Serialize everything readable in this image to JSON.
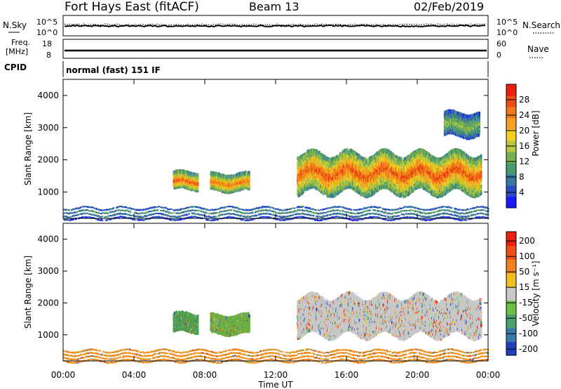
{
  "header": {
    "station": "Fort Hays East (fitACF)",
    "beam": "Beam 13",
    "date": "02/Feb/2019"
  },
  "noise_panel": {
    "left_label": "N.Sky",
    "right_label": "N.Search",
    "left_ticks": [
      "10^5",
      "10^0"
    ],
    "right_ticks": [
      "10^5",
      "10^0"
    ]
  },
  "freq_panel": {
    "left_label_line1": "Freq.",
    "left_label_line2": "[MHz]",
    "right_label": "Nave",
    "left_ticks": [
      "18",
      "8"
    ],
    "right_ticks": [
      "60",
      "0"
    ]
  },
  "cpid": {
    "label": "CPID",
    "value": "normal (fast) 151 IF"
  },
  "chart_data": [
    {
      "type": "heatmap",
      "title": "",
      "ylabel": "Slant Range [km]",
      "xlabel": "",
      "ylim": [
        180,
        4500
      ],
      "yticks": [
        "1000",
        "2000",
        "3000",
        "4000"
      ],
      "xlim": [
        0,
        24
      ],
      "colorbar": {
        "label": "Power [dB]",
        "ticks": [
          "4",
          "8",
          "12",
          "16",
          "20",
          "24",
          "28"
        ],
        "colors": [
          "#1a1aff",
          "#2a4cc8",
          "#3a78a0",
          "#4a9a70",
          "#76b052",
          "#b8c840",
          "#f0d020",
          "#f5a020",
          "#f07818",
          "#ee4a14",
          "#e82010"
        ]
      },
      "regions": [
        {
          "t0": 6.2,
          "t1": 7.6,
          "r0": 1150,
          "r1": 1650,
          "level": 0.85
        },
        {
          "t0": 8.3,
          "t1": 10.5,
          "r0": 1100,
          "r1": 1600,
          "level": 0.8
        },
        {
          "t0": 13.2,
          "t1": 23.6,
          "r0": 1050,
          "r1": 2250,
          "level": 0.85
        },
        {
          "t0": 21.5,
          "t1": 23.5,
          "r0": 2800,
          "r1": 3500,
          "level": 0.45
        },
        {
          "t0": 0,
          "t1": 24,
          "r0": 180,
          "r1": 600,
          "level": 0.3
        }
      ]
    },
    {
      "type": "heatmap",
      "title": "",
      "ylabel": "Slant Range [km]",
      "xlabel": "Time UT",
      "ylim": [
        180,
        4500
      ],
      "yticks": [
        "1000",
        "2000",
        "3000",
        "4000"
      ],
      "xlim": [
        0,
        24
      ],
      "xticks": [
        "00:00",
        "04:00",
        "08:00",
        "12:00",
        "16:00",
        "20:00",
        "00:00"
      ],
      "colorbar": {
        "label": "Velocity [m s⁻¹]",
        "ticks": [
          "200",
          "100",
          "50",
          "15",
          "-15",
          "-50",
          "-100",
          "-200"
        ],
        "colors": [
          "#2040c0",
          "#3a7aa8",
          "#4aa070",
          "#6cc040",
          "#c8c8c8",
          "#f0c020",
          "#f08020",
          "#f05018",
          "#e82010"
        ]
      },
      "regions": [
        {
          "t0": 6.2,
          "t1": 7.6,
          "r0": 1150,
          "r1": 1700,
          "color": "#4aa050"
        },
        {
          "t0": 8.3,
          "t1": 10.5,
          "r0": 1100,
          "r1": 1650,
          "color": "#6cb040"
        },
        {
          "t0": 13.2,
          "t1": 23.6,
          "r0": 1050,
          "r1": 2250,
          "color": "#c8c8c8"
        },
        {
          "t0": 0,
          "t1": 24,
          "r0": 180,
          "r1": 600,
          "color": "#f09020"
        }
      ]
    }
  ]
}
